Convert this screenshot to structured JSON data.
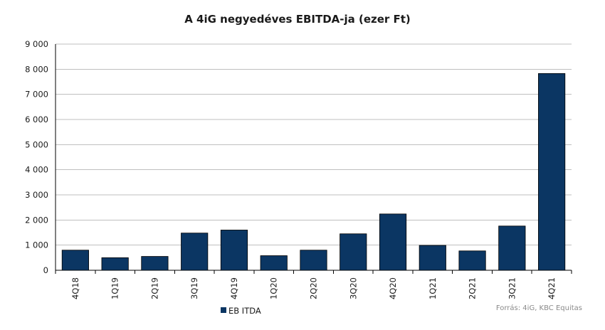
{
  "chart_data": {
    "type": "bar",
    "title": "A 4iG negyedéves EBITDA-ja (ezer Ft)",
    "categories": [
      "4Q18",
      "1Q19",
      "2Q19",
      "3Q19",
      "4Q19",
      "1Q20",
      "2Q20",
      "3Q20",
      "4Q20",
      "1Q21",
      "2Q21",
      "3Q21",
      "4Q21"
    ],
    "series": [
      {
        "name": "EB ITDA",
        "color": "#0b3663",
        "values": [
          800,
          500,
          550,
          1480,
          1600,
          580,
          800,
          1450,
          2240,
          990,
          770,
          1760,
          7830
        ]
      }
    ],
    "ylim": [
      0,
      9000
    ],
    "yticks": [
      0,
      1000,
      2000,
      3000,
      4000,
      5000,
      6000,
      7000,
      8000,
      9000
    ],
    "ytick_labels": [
      "0",
      "1 000",
      "2 000",
      "3 000",
      "4 000",
      "5 000",
      "6 000",
      "7 000",
      "8 000",
      "9 000"
    ],
    "grid": true,
    "legend_position": "bottom-left",
    "source": "Forrás: 4iG, KBC Equitas"
  }
}
